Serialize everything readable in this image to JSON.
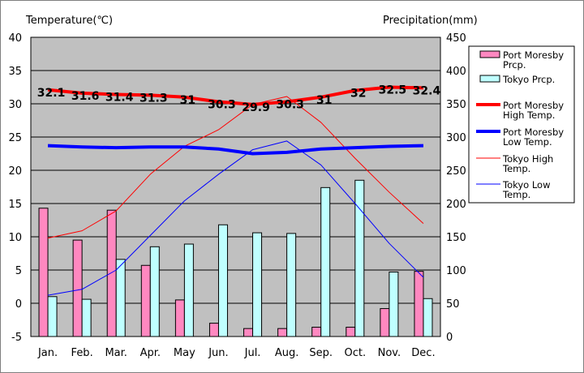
{
  "chart_data": {
    "type": "bar",
    "left_axis_title": "Temperature(℃)",
    "right_axis_title": "Precipitation(mm)",
    "categories": [
      "Jan.",
      "Feb.",
      "Mar.",
      "Apr.",
      "May",
      "Jun.",
      "Jul.",
      "Aug.",
      "Sep.",
      "Oct.",
      "Nov.",
      "Dec."
    ],
    "left_ticks": [
      40,
      35,
      30,
      25,
      20,
      15,
      10,
      5,
      0,
      -5
    ],
    "right_ticks": [
      450,
      400,
      350,
      300,
      250,
      200,
      150,
      100,
      50,
      0
    ],
    "ylim_temperature": [
      -5,
      40
    ],
    "ylim_precipitation": [
      0,
      450
    ],
    "grid": "horizontal",
    "legend_placement": "right",
    "plot_background": "#c0c0c0",
    "bar_series": [
      {
        "legend_label": "Port Moresby Prcp.",
        "color": "#ff88c0",
        "values": [
          193,
          145,
          190,
          107,
          55,
          20,
          12,
          12,
          14,
          14,
          42,
          98
        ]
      },
      {
        "legend_label": "Tokyo Prcp.",
        "color": "#bfffff",
        "values": [
          60,
          56,
          116,
          135,
          139,
          168,
          156,
          155,
          224,
          235,
          97,
          57
        ]
      }
    ],
    "line_series": [
      {
        "legend_label": "Port Moresby High Temp.",
        "color": "#ff0000",
        "width": "thick",
        "values": [
          32.1,
          31.6,
          31.4,
          31.3,
          31.0,
          30.3,
          29.9,
          30.3,
          31.0,
          32.0,
          32.5,
          32.4
        ],
        "data_labels": [
          "32.1",
          "31.6",
          "31.4",
          "31.3",
          "31",
          "30.3",
          "29.9",
          "30.3",
          "31",
          "32",
          "32.5",
          "32.4"
        ]
      },
      {
        "legend_label": "Port Moresby Low Temp.",
        "color": "#0000ff",
        "width": "thick",
        "values": [
          23.7,
          23.5,
          23.4,
          23.5,
          23.5,
          23.2,
          22.5,
          22.7,
          23.2,
          23.4,
          23.6,
          23.7
        ]
      },
      {
        "legend_label": "Tokyo High Temp.",
        "color": "#ff0000",
        "width": "thin",
        "values": [
          9.8,
          10.9,
          13.9,
          19.4,
          23.6,
          26.1,
          29.9,
          31.1,
          27.2,
          21.8,
          16.7,
          12.0
        ]
      },
      {
        "legend_label": "Tokyo Low Temp.",
        "color": "#0000ff",
        "width": "thin",
        "values": [
          1.2,
          2.1,
          5.0,
          10.2,
          15.4,
          19.4,
          23.1,
          24.4,
          20.8,
          15.0,
          9.0,
          3.9
        ]
      }
    ],
    "legend": [
      {
        "kind": "bar",
        "color": "#ff88c0",
        "lines": [
          "Port Moresby",
          "Prcp."
        ]
      },
      {
        "kind": "bar",
        "color": "#bfffff",
        "lines": [
          "Tokyo Prcp."
        ]
      },
      {
        "kind": "thick-line",
        "color": "#ff0000",
        "lines": [
          "Port Moresby",
          "High Temp."
        ]
      },
      {
        "kind": "thick-line",
        "color": "#0000ff",
        "lines": [
          "Port Moresby",
          "Low Temp."
        ]
      },
      {
        "kind": "thin-line",
        "color": "#ff0000",
        "lines": [
          "Tokyo High",
          "Temp."
        ]
      },
      {
        "kind": "thin-line",
        "color": "#0000ff",
        "lines": [
          "Tokyo Low",
          "Temp."
        ]
      }
    ]
  }
}
